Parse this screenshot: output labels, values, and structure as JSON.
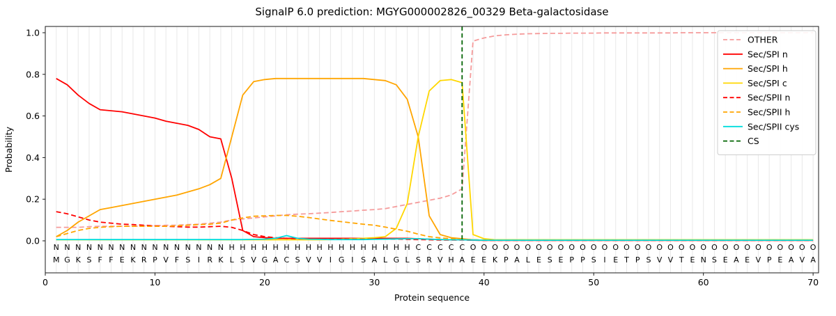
{
  "figure": {
    "title": "SignalP 6.0 prediction: MGYG000002826_00329 Beta-galactosidase"
  },
  "chart_data": {
    "type": "line",
    "title": "SignalP 6.0 prediction: MGYG000002826_00329 Beta-galactosidase",
    "xlabel": "Protein sequence",
    "ylabel": "Probability",
    "xlim": [
      0,
      70.5
    ],
    "ylim": [
      -0.15,
      1.03
    ],
    "xticks": [
      0,
      10,
      20,
      30,
      40,
      50,
      60,
      70
    ],
    "yticks": [
      0.0,
      0.2,
      0.4,
      0.6,
      0.8,
      1.0
    ],
    "grid": "vertical line per residue",
    "grid_color": "#e8e8e8",
    "legend_position": "upper right",
    "sequence": "MGKSFFEKRPVFSIRKLSVGACSVVIGISALGLSRVHAEEKPALESEPPSIETPSVVTENSEAEVPEAVA",
    "region_labels": "NNNNNNNNNNNNNNNNHHHHHHHHHHHHHHHHHCCCCCOOOOOOOOOOOOOOOOOOOOOOOOOOOOOOOO",
    "region_colors": {
      "N": "#e8000b",
      "H": "#ffa500",
      "C": "#ffd700",
      "O": "#9a9a9a"
    },
    "cs": {
      "label": "CS",
      "position": 38,
      "color": "#006400",
      "dash": "dashed"
    },
    "series": [
      {
        "name": "OTHER",
        "color": "#f59b9b",
        "dash": "dashed",
        "values": [
          0.065,
          0.065,
          0.065,
          0.068,
          0.07,
          0.07,
          0.07,
          0.07,
          0.072,
          0.072,
          0.075,
          0.075,
          0.078,
          0.08,
          0.085,
          0.09,
          0.1,
          0.105,
          0.11,
          0.115,
          0.12,
          0.125,
          0.128,
          0.13,
          0.133,
          0.136,
          0.14,
          0.143,
          0.147,
          0.15,
          0.155,
          0.165,
          0.175,
          0.185,
          0.195,
          0.205,
          0.22,
          0.25,
          0.96,
          0.975,
          0.985,
          0.99,
          0.993,
          0.995,
          0.996,
          0.997,
          0.997,
          0.998,
          0.998,
          0.998,
          0.999,
          0.999,
          0.999,
          0.999,
          0.999,
          0.999,
          0.999,
          1.0,
          1.0,
          1.0,
          1.0,
          1.0,
          1.0,
          1.0,
          1.0,
          1.0,
          1.0,
          1.0,
          1.0,
          1.0
        ]
      },
      {
        "name": "Sec/SPI n",
        "color": "#ff0000",
        "dash": "solid",
        "values": [
          0.78,
          0.75,
          0.7,
          0.66,
          0.63,
          0.625,
          0.62,
          0.61,
          0.6,
          0.59,
          0.575,
          0.565,
          0.555,
          0.535,
          0.5,
          0.49,
          0.3,
          0.05,
          0.02,
          0.015,
          0.012,
          0.012,
          0.012,
          0.012,
          0.012,
          0.012,
          0.012,
          0.012,
          0.012,
          0.012,
          0.012,
          0.012,
          0.012,
          0.01,
          0.008,
          0.006,
          0.005,
          0.005,
          0.003,
          0.002,
          0.002,
          0.002,
          0.002,
          0.002,
          0.002,
          0.002,
          0.002,
          0.002,
          0.002,
          0.002,
          0.002,
          0.002,
          0.002,
          0.002,
          0.002,
          0.002,
          0.002,
          0.002,
          0.002,
          0.002,
          0.002,
          0.002,
          0.002,
          0.002,
          0.002,
          0.002,
          0.002,
          0.002,
          0.002,
          0.002
        ]
      },
      {
        "name": "Sec/SPI h",
        "color": "#ffa500",
        "dash": "solid",
        "values": [
          0.02,
          0.05,
          0.09,
          0.12,
          0.15,
          0.16,
          0.17,
          0.18,
          0.19,
          0.2,
          0.21,
          0.22,
          0.235,
          0.25,
          0.27,
          0.3,
          0.5,
          0.7,
          0.765,
          0.775,
          0.78,
          0.78,
          0.78,
          0.78,
          0.78,
          0.78,
          0.78,
          0.78,
          0.78,
          0.775,
          0.77,
          0.75,
          0.68,
          0.5,
          0.12,
          0.03,
          0.015,
          0.01,
          0.005,
          0.003,
          0.003,
          0.003,
          0.003,
          0.003,
          0.003,
          0.003,
          0.003,
          0.003,
          0.003,
          0.003,
          0.003,
          0.003,
          0.003,
          0.003,
          0.003,
          0.003,
          0.003,
          0.003,
          0.003,
          0.003,
          0.003,
          0.003,
          0.003,
          0.003,
          0.003,
          0.003,
          0.003,
          0.003,
          0.003,
          0.003
        ]
      },
      {
        "name": "Sec/SPI c",
        "color": "#ffd700",
        "dash": "solid",
        "values": [
          0.005,
          0.005,
          0.005,
          0.005,
          0.005,
          0.005,
          0.005,
          0.005,
          0.005,
          0.005,
          0.005,
          0.005,
          0.005,
          0.005,
          0.005,
          0.005,
          0.005,
          0.005,
          0.005,
          0.005,
          0.005,
          0.005,
          0.005,
          0.005,
          0.005,
          0.006,
          0.008,
          0.01,
          0.012,
          0.015,
          0.02,
          0.06,
          0.18,
          0.5,
          0.72,
          0.77,
          0.775,
          0.76,
          0.03,
          0.01,
          0.005,
          0.005,
          0.005,
          0.005,
          0.005,
          0.005,
          0.005,
          0.005,
          0.005,
          0.005,
          0.005,
          0.005,
          0.005,
          0.005,
          0.005,
          0.005,
          0.005,
          0.005,
          0.005,
          0.005,
          0.005,
          0.005,
          0.005,
          0.005,
          0.005,
          0.005,
          0.005,
          0.005,
          0.005,
          0.005
        ]
      },
      {
        "name": "Sec/SPII n",
        "color": "#ff0000",
        "dash": "dashed",
        "values": [
          0.14,
          0.13,
          0.115,
          0.1,
          0.09,
          0.085,
          0.08,
          0.078,
          0.075,
          0.072,
          0.07,
          0.068,
          0.066,
          0.066,
          0.068,
          0.07,
          0.065,
          0.05,
          0.03,
          0.02,
          0.015,
          0.012,
          0.01,
          0.01,
          0.009,
          0.009,
          0.008,
          0.008,
          0.008,
          0.008,
          0.008,
          0.008,
          0.007,
          0.006,
          0.005,
          0.004,
          0.004,
          0.004,
          0.003,
          0.002,
          0.002,
          0.002,
          0.002,
          0.002,
          0.002,
          0.002,
          0.002,
          0.002,
          0.002,
          0.002,
          0.002,
          0.002,
          0.002,
          0.002,
          0.002,
          0.002,
          0.002,
          0.002,
          0.002,
          0.002,
          0.002,
          0.002,
          0.002,
          0.002,
          0.002,
          0.002,
          0.002,
          0.002,
          0.002,
          0.002
        ]
      },
      {
        "name": "Sec/SPII h",
        "color": "#ffa500",
        "dash": "dashed",
        "values": [
          0.02,
          0.035,
          0.05,
          0.06,
          0.065,
          0.068,
          0.07,
          0.07,
          0.07,
          0.07,
          0.07,
          0.072,
          0.075,
          0.078,
          0.08,
          0.085,
          0.1,
          0.11,
          0.118,
          0.12,
          0.122,
          0.122,
          0.118,
          0.112,
          0.105,
          0.098,
          0.092,
          0.086,
          0.08,
          0.075,
          0.066,
          0.056,
          0.046,
          0.032,
          0.02,
          0.014,
          0.01,
          0.008,
          0.005,
          0.004,
          0.003,
          0.003,
          0.003,
          0.003,
          0.003,
          0.003,
          0.003,
          0.003,
          0.003,
          0.003,
          0.003,
          0.003,
          0.003,
          0.003,
          0.003,
          0.003,
          0.003,
          0.003,
          0.003,
          0.003,
          0.003,
          0.003,
          0.003,
          0.003,
          0.003,
          0.003,
          0.003,
          0.003,
          0.003,
          0.003
        ]
      },
      {
        "name": "Sec/SPII cys",
        "color": "#00dddd",
        "dash": "solid",
        "values": [
          0.006,
          0.006,
          0.006,
          0.006,
          0.006,
          0.006,
          0.006,
          0.006,
          0.006,
          0.006,
          0.006,
          0.006,
          0.006,
          0.006,
          0.006,
          0.006,
          0.006,
          0.006,
          0.007,
          0.008,
          0.012,
          0.025,
          0.012,
          0.008,
          0.007,
          0.006,
          0.006,
          0.006,
          0.006,
          0.007,
          0.008,
          0.009,
          0.01,
          0.01,
          0.008,
          0.006,
          0.005,
          0.005,
          0.004,
          0.003,
          0.003,
          0.003,
          0.003,
          0.003,
          0.003,
          0.003,
          0.003,
          0.003,
          0.003,
          0.003,
          0.003,
          0.003,
          0.003,
          0.003,
          0.003,
          0.003,
          0.003,
          0.003,
          0.003,
          0.003,
          0.003,
          0.003,
          0.003,
          0.003,
          0.003,
          0.003,
          0.003,
          0.003,
          0.003,
          0.003
        ]
      }
    ]
  }
}
